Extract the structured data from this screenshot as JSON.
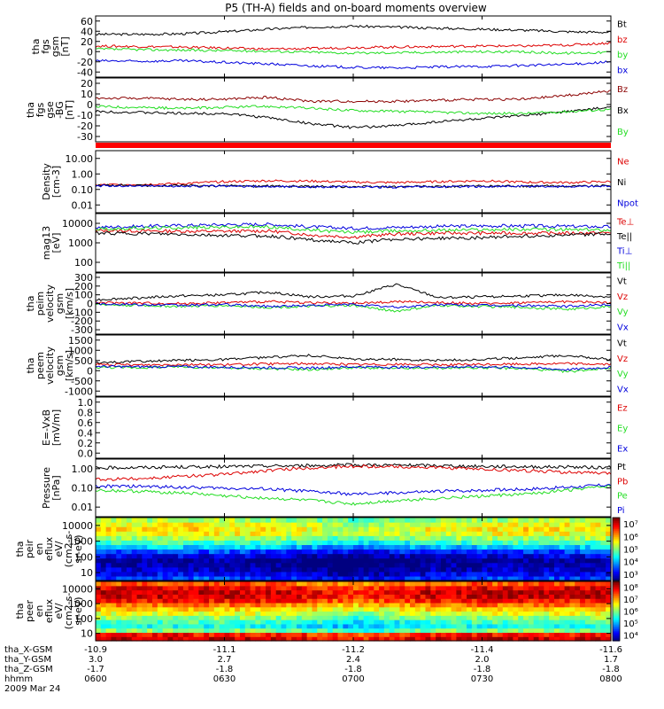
{
  "title": "P5 (TH-A) fields and on-board moments overview",
  "chart_data": [
    {
      "type": "line",
      "panel": "fgs_gsm",
      "ylabel": [
        "tha",
        "fgs",
        "gsm",
        "[nT]"
      ],
      "yticks": [
        "60",
        "40",
        "20",
        "0",
        "-20",
        "-40"
      ],
      "ylim": [
        -55,
        65
      ],
      "series": [
        {
          "name": "Bt",
          "color": "#000000",
          "values": [
            29,
            29,
            30,
            34,
            39,
            43,
            45,
            43,
            41,
            39,
            37,
            34,
            33
          ]
        },
        {
          "name": "bz",
          "color": "#dd0000",
          "values": [
            6,
            5,
            4,
            2,
            0,
            1,
            3,
            4,
            5,
            6,
            6,
            8,
            12
          ]
        },
        {
          "name": "by",
          "color": "#22dd22",
          "values": [
            0,
            -1,
            -2,
            -3,
            -4,
            -6,
            -8,
            -7,
            -6,
            -5,
            -6,
            -8,
            -6
          ]
        },
        {
          "name": "bx",
          "color": "#0000dd",
          "values": [
            -23,
            -24,
            -23,
            -26,
            -29,
            -33,
            -36,
            -37,
            -35,
            -34,
            -32,
            -30,
            -25
          ]
        }
      ]
    },
    {
      "type": "line",
      "panel": "fgs_gse",
      "ylabel": [
        "tha",
        "fgs",
        "gse",
        "-BG",
        "[nT]"
      ],
      "yticks": [
        "20",
        "10",
        "0",
        "-10",
        "-20",
        "-30"
      ],
      "ylim": [
        -38,
        25
      ],
      "series": [
        {
          "name": "Bz",
          "color": "#8b0000",
          "values": [
            5,
            5,
            4,
            4,
            6,
            2,
            2,
            2,
            3,
            4,
            4,
            8,
            12
          ]
        },
        {
          "name": "Bx",
          "color": "#000000",
          "values": [
            -8,
            -9,
            -10,
            -10,
            -14,
            -20,
            -24,
            -22,
            -18,
            -15,
            -12,
            -8,
            -4
          ]
        },
        {
          "name": "By",
          "color": "#22dd22",
          "values": [
            -3,
            -4,
            -5,
            -4,
            -3,
            -5,
            -7,
            -8,
            -9,
            -10,
            -10,
            -8,
            -6
          ]
        }
      ]
    },
    {
      "type": "line",
      "panel": "density",
      "ylabel": [
        "Density",
        "[cm-3]"
      ],
      "yticks": [
        "10.00",
        "1.00",
        "0.10",
        "0.01"
      ],
      "log": true,
      "ylim": [
        0.01,
        20
      ],
      "series": [
        {
          "name": "Ne",
          "color": "#dd0000",
          "values": [
            0.3,
            0.32,
            0.35,
            0.45,
            0.5,
            0.48,
            0.42,
            0.4,
            0.45,
            0.5,
            0.42,
            0.4,
            0.45
          ]
        },
        {
          "name": "Ni",
          "color": "#000000",
          "values": [
            0.28,
            0.28,
            0.27,
            0.27,
            0.26,
            0.25,
            0.24,
            0.24,
            0.25,
            0.26,
            0.26,
            0.26,
            0.27
          ]
        },
        {
          "name": "Npot",
          "color": "#0000dd",
          "values": [
            0.27,
            0.27,
            0.26,
            0.26,
            0.25,
            0.24,
            0.23,
            0.23,
            0.24,
            0.25,
            0.25,
            0.25,
            0.26
          ]
        }
      ]
    },
    {
      "type": "line",
      "panel": "temperature",
      "ylabel": [
        "mag13",
        "[eV]"
      ],
      "yticks": [
        "10000",
        "1000",
        "100"
      ],
      "log": true,
      "ylim": [
        100,
        15000
      ],
      "series": [
        {
          "name": "Te⊥",
          "color": "#dd0000",
          "values": [
            3500,
            3400,
            3300,
            3300,
            3400,
            2400,
            2000,
            2600,
            2800,
            2800,
            2800,
            2800,
            2900
          ]
        },
        {
          "name": "Te||",
          "color": "#000000",
          "values": [
            2800,
            2700,
            2500,
            2300,
            2200,
            1600,
            1200,
            1700,
            1800,
            1900,
            2200,
            2400,
            2600
          ]
        },
        {
          "name": "Ti⊥",
          "color": "#0000dd",
          "values": [
            4600,
            5000,
            5400,
            5800,
            6000,
            4800,
            4200,
            4600,
            5000,
            5200,
            5200,
            5000,
            4800
          ]
        },
        {
          "name": "Ti||",
          "color": "#22dd22",
          "values": [
            4000,
            4300,
            4500,
            4700,
            4800,
            3600,
            3000,
            3400,
            3600,
            3800,
            3900,
            3800,
            3700
          ]
        }
      ]
    },
    {
      "type": "line",
      "panel": "peim_velocity",
      "ylabel": [
        "tha",
        "peim",
        "velocity",
        "gsm",
        "[km/s]"
      ],
      "yticks": [
        "300",
        "200",
        "100",
        "0",
        "-100",
        "-200",
        "-300"
      ],
      "ylim": [
        -320,
        320
      ],
      "series": [
        {
          "name": "Vt",
          "color": "#000000",
          "values": [
            40,
            60,
            80,
            90,
            120,
            70,
            80,
            200,
            60,
            70,
            80,
            90,
            70
          ]
        },
        {
          "name": "Vz",
          "color": "#dd0000",
          "values": [
            10,
            5,
            0,
            10,
            20,
            10,
            0,
            20,
            10,
            0,
            10,
            20,
            10
          ]
        },
        {
          "name": "Vy",
          "color": "#22dd22",
          "values": [
            -10,
            -20,
            -30,
            -20,
            -40,
            -30,
            -20,
            -80,
            -20,
            -30,
            -40,
            -60,
            -30
          ]
        },
        {
          "name": "Vx",
          "color": "#0000dd",
          "values": [
            0,
            -10,
            -20,
            -10,
            -30,
            -20,
            -10,
            -40,
            -10,
            -20,
            -20,
            -30,
            -10
          ]
        }
      ]
    },
    {
      "type": "line",
      "panel": "peem_velocity",
      "ylabel": [
        "tha",
        "peem",
        "velocity",
        "gsm",
        "[km/s]"
      ],
      "yticks": [
        "1500",
        "1000",
        "500",
        "0",
        "-500",
        "-1000"
      ],
      "ylim": [
        -1500,
        1500
      ],
      "series": [
        {
          "name": "Vt",
          "color": "#000000",
          "values": [
            150,
            200,
            250,
            300,
            400,
            500,
            300,
            300,
            250,
            300,
            400,
            500,
            300
          ]
        },
        {
          "name": "Vz",
          "color": "#dd0000",
          "values": [
            50,
            30,
            60,
            40,
            80,
            100,
            50,
            60,
            40,
            50,
            80,
            100,
            60
          ]
        },
        {
          "name": "Vy",
          "color": "#22dd22",
          "values": [
            -80,
            -100,
            -60,
            -120,
            -150,
            -200,
            -100,
            -150,
            -120,
            -100,
            -150,
            -300,
            -100
          ]
        },
        {
          "name": "Vx",
          "color": "#0000dd",
          "values": [
            -40,
            -60,
            -50,
            -80,
            -100,
            -120,
            -60,
            -80,
            -70,
            -60,
            -100,
            -200,
            -80
          ]
        }
      ]
    },
    {
      "type": "line",
      "panel": "efield",
      "ylabel": [
        "E=-VxB",
        "[mV/m]"
      ],
      "yticks": [
        "1.0",
        "0.8",
        "0.6",
        "0.4",
        "0.2",
        "0.0"
      ],
      "ylim": [
        0,
        1
      ],
      "series": [
        {
          "name": "Ez",
          "color": "#dd0000",
          "values": []
        },
        {
          "name": "Ey",
          "color": "#22dd22",
          "values": []
        },
        {
          "name": "Ex",
          "color": "#0000dd",
          "values": []
        }
      ]
    },
    {
      "type": "line",
      "panel": "pressure",
      "ylabel": [
        "Pressure",
        "[nPa]"
      ],
      "yticks": [
        "1.00",
        "0.10",
        "0.01"
      ],
      "log": true,
      "ylim": [
        0.01,
        1.5
      ],
      "series": [
        {
          "name": "Pt",
          "color": "#000000",
          "values": [
            0.7,
            0.72,
            0.75,
            0.78,
            0.82,
            0.85,
            0.9,
            0.88,
            0.85,
            0.8,
            0.78,
            0.75,
            0.72
          ]
        },
        {
          "name": "Pb",
          "color": "#dd0000",
          "values": [
            0.25,
            0.28,
            0.33,
            0.4,
            0.55,
            0.7,
            0.8,
            0.78,
            0.7,
            0.62,
            0.55,
            0.48,
            0.42
          ]
        },
        {
          "name": "Pe",
          "color": "#22dd22",
          "values": [
            0.1,
            0.09,
            0.08,
            0.06,
            0.05,
            0.04,
            0.03,
            0.04,
            0.05,
            0.06,
            0.07,
            0.1,
            0.14
          ]
        },
        {
          "name": "Pi",
          "color": "#0000dd",
          "values": [
            0.14,
            0.14,
            0.13,
            0.12,
            0.11,
            0.09,
            0.07,
            0.08,
            0.09,
            0.1,
            0.11,
            0.13,
            0.16
          ]
        }
      ]
    },
    {
      "type": "heatmap",
      "panel": "peir_spectrogram",
      "ylabel": [
        "tha",
        "peir",
        "en",
        "eflux",
        "eV/",
        "(cm2-s-",
        "sr-eV)"
      ],
      "yticks": [
        "10000",
        "1000",
        "100",
        "10"
      ],
      "colorbar_ticks": [
        "10⁷",
        "10⁶",
        "10⁵",
        "10⁴",
        "10³"
      ],
      "colorbar_range": [
        1000,
        10000000
      ],
      "rows_low_to_high_energy": [
        6000,
        3000,
        2000,
        1500,
        1200,
        2500,
        6000,
        20000,
        60000,
        150000,
        300000,
        400000,
        300000,
        150000
      ],
      "time_modulation": [
        1.0,
        1.0,
        1.1,
        1.0,
        0.9,
        0.6,
        0.4,
        0.6,
        0.8,
        0.9,
        1.0,
        1.0,
        1.0
      ]
    },
    {
      "type": "heatmap",
      "panel": "peer_spectrogram",
      "ylabel": [
        "tha",
        "peer",
        "en",
        "eflux",
        "eV/",
        "(cm2-s-",
        "sr-eV)"
      ],
      "yticks": [
        "10000",
        "1000",
        "100",
        "10"
      ],
      "colorbar_ticks": [
        "10⁸",
        "10⁷",
        "10⁶",
        "10⁵",
        "10⁴"
      ],
      "colorbar_range": [
        10000,
        100000000
      ],
      "rows_low_to_high_energy": [
        50000000,
        30000000,
        1000000,
        400000,
        600000,
        1200000,
        2500000,
        5000000,
        12000000,
        30000000,
        50000000,
        60000000,
        40000000,
        15000000
      ],
      "time_modulation": [
        1.0,
        1.0,
        1.0,
        1.0,
        0.9,
        0.7,
        0.4,
        0.6,
        0.9,
        1.0,
        1.0,
        1.0,
        1.0
      ]
    }
  ],
  "x_axis": {
    "rows": [
      {
        "label": "tha_X-GSM",
        "values": [
          "-10.9",
          "-11.1",
          "-11.2",
          "-11.4",
          "-11.6"
        ]
      },
      {
        "label": "tha_Y-GSM",
        "values": [
          "3.0",
          "2.7",
          "2.4",
          "2.0",
          "1.7"
        ]
      },
      {
        "label": "tha_Z-GSM",
        "values": [
          "-1.7",
          "-1.8",
          "-1.8",
          "-1.8",
          "-1.8"
        ]
      },
      {
        "label": "hhmm",
        "values": [
          "0600",
          "0630",
          "0700",
          "0730",
          "0800"
        ]
      }
    ],
    "date": "2009 Mar 24"
  },
  "colors": {
    "red_bar": "#ff0000"
  }
}
